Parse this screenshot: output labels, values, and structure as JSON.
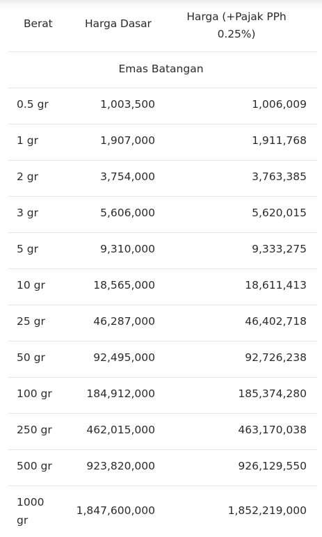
{
  "table": {
    "headers": {
      "weight": "Berat",
      "base_price": "Harga Dasar",
      "taxed_price": "Harga (+Pajak PPh 0.25%)"
    },
    "section_title": "Emas Batangan",
    "rows": [
      {
        "weight": "0.5 gr",
        "base_price": "1,003,500",
        "taxed_price": "1,006,009"
      },
      {
        "weight": "1 gr",
        "base_price": "1,907,000",
        "taxed_price": "1,911,768"
      },
      {
        "weight": "2 gr",
        "base_price": "3,754,000",
        "taxed_price": "3,763,385"
      },
      {
        "weight": "3 gr",
        "base_price": "5,606,000",
        "taxed_price": "5,620,015"
      },
      {
        "weight": "5 gr",
        "base_price": "9,310,000",
        "taxed_price": "9,333,275"
      },
      {
        "weight": "10 gr",
        "base_price": "18,565,000",
        "taxed_price": "18,611,413"
      },
      {
        "weight": "25 gr",
        "base_price": "46,287,000",
        "taxed_price": "46,402,718"
      },
      {
        "weight": "50 gr",
        "base_price": "92,495,000",
        "taxed_price": "92,726,238"
      },
      {
        "weight": "100 gr",
        "base_price": "184,912,000",
        "taxed_price": "185,374,280"
      },
      {
        "weight": "250 gr",
        "base_price": "462,015,000",
        "taxed_price": "463,170,038"
      },
      {
        "weight": "500 gr",
        "base_price": "923,820,000",
        "taxed_price": "926,129,550"
      },
      {
        "weight": "1000 gr",
        "base_price": "1,847,600,000",
        "taxed_price": "1,852,219,000"
      }
    ]
  }
}
